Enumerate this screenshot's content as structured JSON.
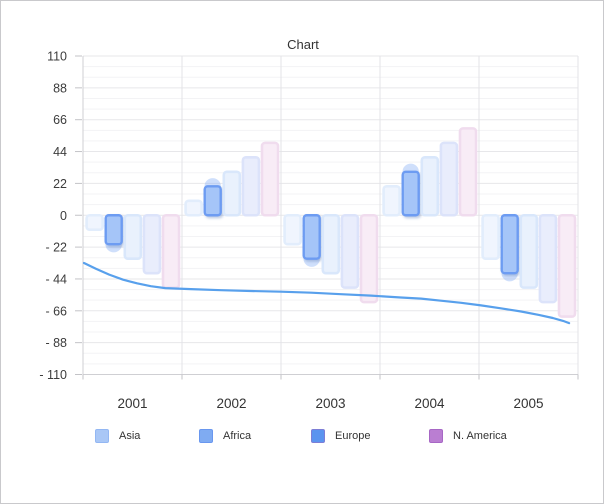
{
  "chart_data": {
    "type": "bar+line",
    "title": "Chart",
    "categories": [
      "2001",
      "2002",
      "2003",
      "2004",
      "2005"
    ],
    "y_axis": {
      "min": -110,
      "max": 110,
      "tick_step": 22,
      "tick_labels": [
        "110",
        "88",
        "66",
        "44",
        "22",
        "0",
        "- 22",
        "- 44",
        "- 66",
        "- 88",
        "- 110"
      ]
    },
    "x_axis": {
      "tick_labels": [
        "2001",
        "2002",
        "2003",
        "2004",
        "2005"
      ]
    },
    "bar_series": [
      {
        "name": "Asia",
        "values": [
          -10,
          10,
          -20,
          20,
          -30
        ],
        "bar_fill": "#f0f5fe",
        "bar_edge": "#e2edfc",
        "legend_fill": "#a9c7f6",
        "legend_border": "#93b7f3",
        "highlighted": false
      },
      {
        "name": "Africa",
        "values": [
          -20,
          20,
          -30,
          30,
          -40
        ],
        "bar_fill": "#a5c5f8",
        "bar_edge": "#6d9cf2",
        "legend_fill": "#7fabf2",
        "legend_border": "#6997ef",
        "highlighted": true
      },
      {
        "name": "Europe",
        "values": [
          -30,
          30,
          -40,
          40,
          -50
        ],
        "bar_fill": "#e9f1fd",
        "bar_edge": "#d9e7fb",
        "legend_fill": "#5b94ef",
        "legend_border": "#7d7ed6",
        "highlighted": false
      },
      {
        "name": "",
        "values": [
          -40,
          40,
          -50,
          50,
          -60
        ],
        "bar_fill": "#e9edfc",
        "bar_edge": "#dce3fa",
        "legend_fill": null,
        "legend_border": null,
        "highlighted": false
      },
      {
        "name": "N. America",
        "values": [
          -50,
          50,
          -60,
          60,
          -70
        ],
        "bar_fill": "#f8ecf6",
        "bar_edge": "#f0dcee",
        "legend_fill": "#ba7ed2",
        "legend_border": "#a767c5",
        "highlighted": false
      }
    ],
    "line_series": {
      "name": "",
      "color": "#58a0ec",
      "points": [
        [
          0.002,
          -33.0
        ],
        [
          0.026,
          -37.0
        ],
        [
          0.053,
          -41.0
        ],
        [
          0.081,
          -44.5
        ],
        [
          0.109,
          -47.0
        ],
        [
          0.137,
          -49.0
        ],
        [
          0.166,
          -50.3
        ],
        [
          0.218,
          -51.0
        ],
        [
          0.279,
          -51.8
        ],
        [
          0.339,
          -52.3
        ],
        [
          0.4,
          -52.8
        ],
        [
          0.461,
          -53.5
        ],
        [
          0.521,
          -54.5
        ],
        [
          0.582,
          -55.5
        ],
        [
          0.642,
          -56.8
        ],
        [
          0.683,
          -57.6
        ],
        [
          0.723,
          -59.0
        ],
        [
          0.764,
          -60.5
        ],
        [
          0.804,
          -62.3
        ],
        [
          0.844,
          -64.3
        ],
        [
          0.885,
          -66.5
        ],
        [
          0.921,
          -68.8
        ],
        [
          0.949,
          -71.0
        ],
        [
          0.97,
          -73.0
        ],
        [
          0.982,
          -74.5
        ]
      ]
    },
    "legend_position": "bottom",
    "grid": "on"
  }
}
